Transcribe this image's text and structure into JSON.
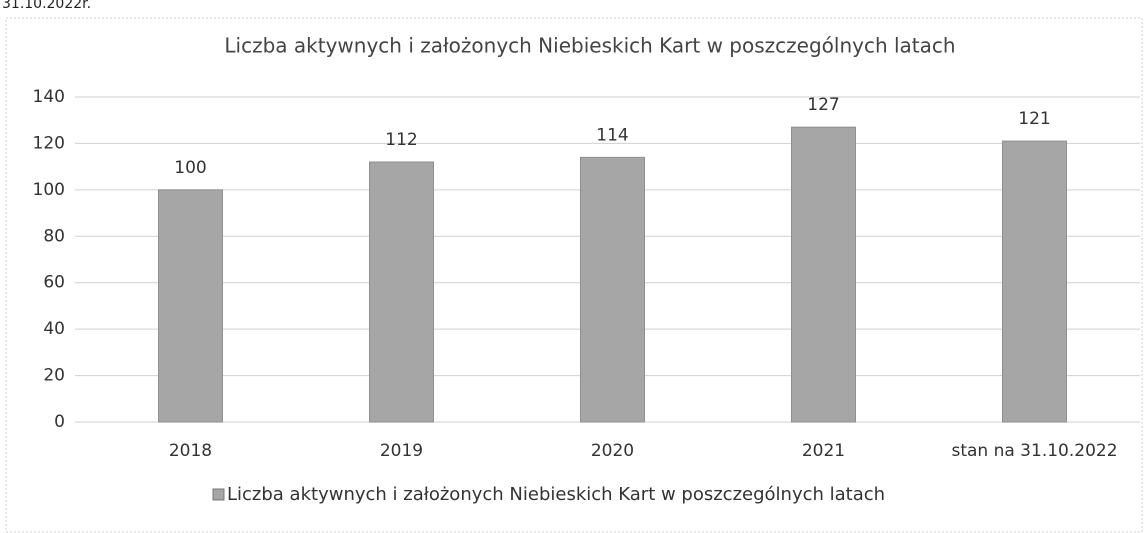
{
  "caption": "31.10.2022r.",
  "chart_data": {
    "type": "bar",
    "title": "Liczba aktywnych i założonych Niebieskich Kart w poszczególnych latach",
    "categories": [
      "2018",
      "2019",
      "2020",
      "2021",
      "stan na 31.10.2022"
    ],
    "series": [
      {
        "name": "Liczba aktywnych i założonych Niebieskich Kart w poszczególnych latach",
        "color": "#a6a6a6",
        "values": [
          100,
          112,
          114,
          127,
          121
        ]
      }
    ],
    "ylim": [
      0,
      140
    ],
    "yticks": [
      0,
      20,
      40,
      60,
      80,
      100,
      120,
      140
    ],
    "grid": true,
    "legend": "bottom"
  }
}
